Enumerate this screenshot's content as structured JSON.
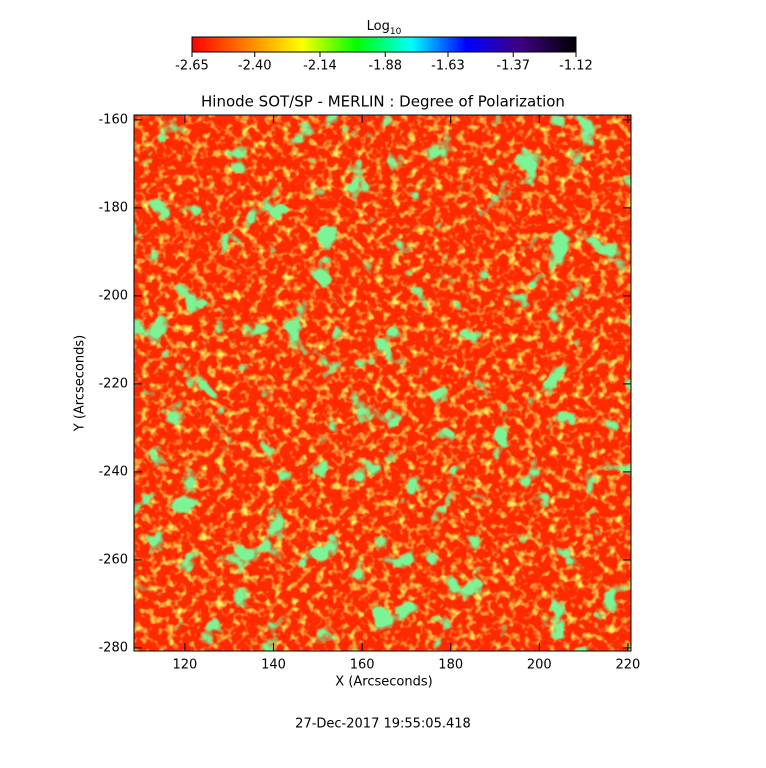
{
  "chart_data": {
    "type": "heatmap",
    "title": "Hinode SOT/SP - MERLIN : Degree of Polarization",
    "x_label": "X (Arcseconds)",
    "y_label": "Y (Arcseconds)",
    "footer": "27-Dec-2017 19:55:05.418",
    "xlim": [
      108.5,
      220.7
    ],
    "ylim": [
      -280.7,
      -158.9
    ],
    "xticks": [
      120,
      140,
      160,
      180,
      200,
      220
    ],
    "yticks": [
      -160,
      -180,
      -200,
      -220,
      -240,
      -260,
      -280
    ],
    "colorbar": {
      "label": "Log",
      "label_subscript": "10",
      "lim": [
        -2.65,
        -1.12
      ],
      "ticks": [
        -2.65,
        {
          "value": -2.4,
          "label": "-2.40"
        },
        -2.14,
        -1.88,
        -1.63,
        -1.37,
        -1.12
      ],
      "colors": [
        "#ff0000",
        "#ff8000",
        "#ffff00",
        "#00ff00",
        "#00ffff",
        "#0000ff",
        "#400080",
        "#000000"
      ]
    }
  }
}
